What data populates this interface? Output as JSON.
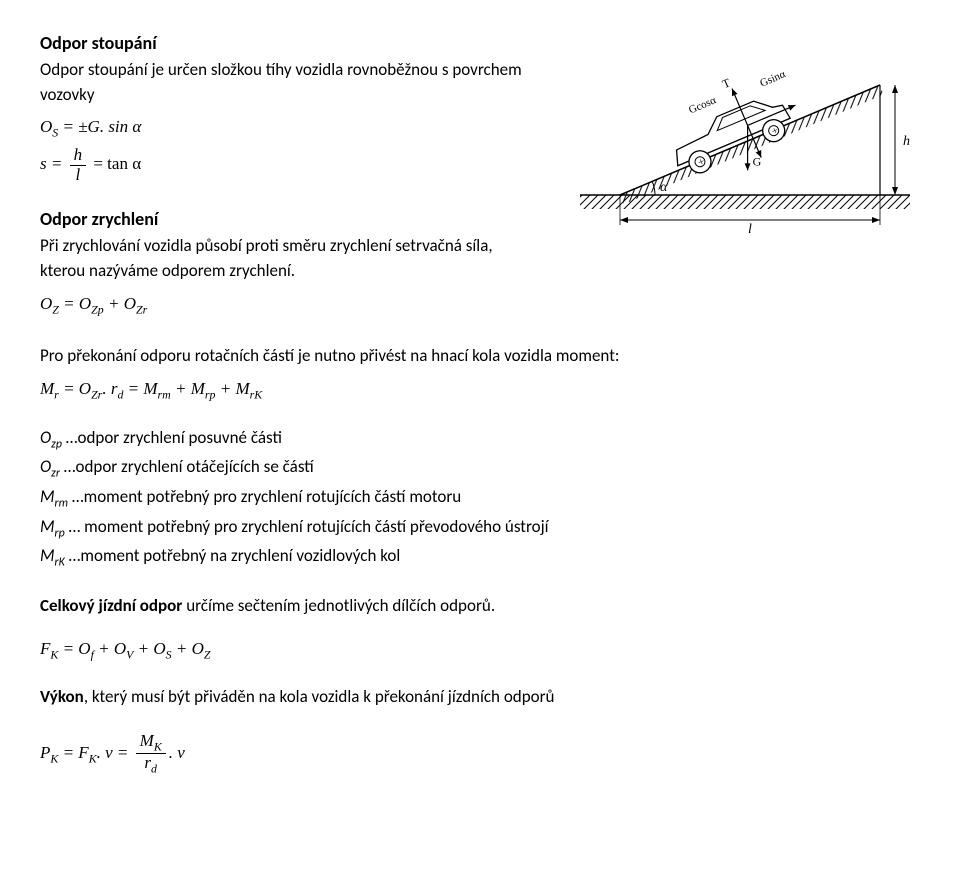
{
  "s1": {
    "heading": "Odpor stoupání",
    "para": "Odpor stoupání je určen složkou tíhy vozidla rovnoběžnou s povrchem vozovky",
    "eq1_lhs": "O",
    "eq1_sub": "S",
    "eq1_rhs": " = ±G. sin α",
    "eq2_lhs": "s = ",
    "eq2_num": "h",
    "eq2_den": "l",
    "eq2_rhs": " = tan α"
  },
  "s2": {
    "heading": "Odpor zrychlení",
    "para": "Při zrychlování vozidla působí proti směru zrychlení setrvačná síla, kterou nazýváme odporem zrychlení.",
    "eq_lhs": "O",
    "eq_sub1": "Z",
    "eq_mid": " = O",
    "eq_sub2": "Zp",
    "eq_mid2": " + O",
    "eq_sub3": "Zr"
  },
  "s3": {
    "para": "Pro překonání odporu rotačních částí je nutno přivést na hnací kola vozidla moment:",
    "eq_a": "M",
    "eq_a_sub": "r",
    "eq_b": " = O",
    "eq_b_sub": "Zr",
    "eq_c": ". r",
    "eq_c_sub": "d",
    "eq_d": " = M",
    "eq_d_sub": "rm",
    "eq_e": " + M",
    "eq_e_sub": "rp",
    "eq_f": " + M",
    "eq_f_sub": "rK"
  },
  "defs": [
    {
      "sym": "O",
      "sub": "zp",
      "text": " …odpor zrychlení posuvné části"
    },
    {
      "sym": "O",
      "sub": "zr",
      "text": " …odpor zrychlení otáčejících se částí"
    },
    {
      "sym": "M",
      "sub": "rm",
      "text": " …moment potřebný pro zrychlení rotujících částí motoru"
    },
    {
      "sym": "M",
      "sub": "rp",
      "text": " … moment potřebný pro zrychlení rotujících částí převodového ústrojí"
    },
    {
      "sym": "M",
      "sub": "rK",
      "text": " …moment potřebný na zrychlení vozidlových kol"
    }
  ],
  "s4": {
    "bold": "Celkový jízdní odpor",
    "rest": " určíme sečtením jednotlivých dílčích odporů.",
    "eq_a": "F",
    "eq_a_sub": "K",
    "eq_b": " = O",
    "eq_b_sub": "f",
    "eq_c": " + O",
    "eq_c_sub": "V",
    "eq_d": " + O",
    "eq_d_sub": "S",
    "eq_e": " + O",
    "eq_e_sub": "Z"
  },
  "s5": {
    "bold": "Výkon",
    "rest": ", který musí být přiváděn na kola vozidla k překonání jízdních odporů",
    "eq_a": "P",
    "eq_a_sub": "K",
    "eq_b": " = F",
    "eq_b_sub": "K",
    "eq_c": ". v = ",
    "eq_num": "M",
    "eq_num_sub": "K",
    "eq_den": "r",
    "eq_den_sub": "d",
    "eq_d": ". v"
  },
  "diagram": {
    "labels": {
      "T": "T",
      "Gcos": "Gcosα",
      "Gsin": "Gsinα",
      "G": "G",
      "h": "h",
      "l": "l",
      "alpha": "α",
      "plus": "+"
    },
    "colors": {
      "stroke": "#000000",
      "hatch": "#000000",
      "bg": "#ffffff"
    }
  }
}
